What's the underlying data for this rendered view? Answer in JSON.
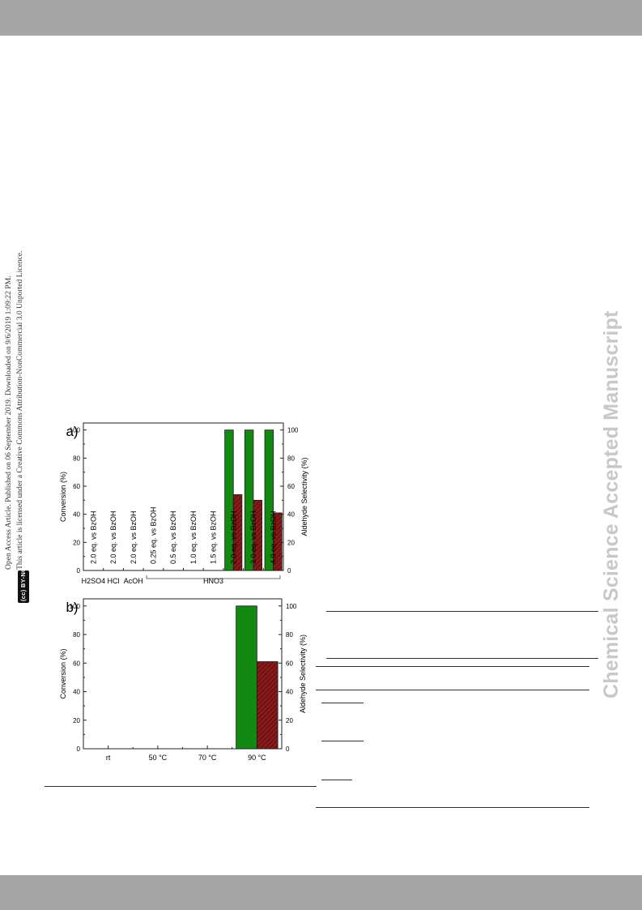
{
  "page": {
    "notice_line1": "Open Access Article. Published on 06 September 2019. Downloaded on 9/6/2019 1:09:22 PM.",
    "notice_line2": "This article is licensed under a Creative Commons Attribution-NonCommercial 3.0 Unported Licence.",
    "license_badge": "(cc) BY-NC",
    "watermark": "Chemical Science Accepted Manuscript",
    "colors": {
      "band": "#a6a6a6",
      "conversion": "#128a12",
      "selectivity": "#8b1a1a",
      "watermark": "#c8c8c8"
    }
  },
  "chart_data": [
    {
      "type": "bar",
      "panel_label": "a)",
      "categories": [
        "2.0 eq. vs BzOH",
        "2.0 eq. vs BzOH",
        "2.0 eq. vs BzOH",
        "0.25 eq. vs BzOH",
        "0.5 eq. vs BzOH",
        "1.0 eq. vs BzOH",
        "1.5 eq. vs BzOH",
        "2.0 eq. vs BzOH",
        "3.0 eq. vs BzOH",
        "4.0 eq. vs BzOH"
      ],
      "acid_groups": [
        {
          "label": "H2SO4",
          "start": 0,
          "end": 0
        },
        {
          "label": "HCl",
          "start": 1,
          "end": 1
        },
        {
          "label": "AcOH",
          "start": 2,
          "end": 2
        },
        {
          "label": "HNO3",
          "start": 3,
          "end": 9
        }
      ],
      "series": [
        {
          "name": "Conversion",
          "axis": "left",
          "values": [
            0,
            0,
            0,
            0,
            0,
            0,
            0,
            100,
            100,
            100
          ]
        },
        {
          "name": "Aldehyde Selectivity",
          "axis": "right",
          "values": [
            0,
            0,
            0,
            0,
            0,
            0,
            0,
            54,
            50,
            41
          ]
        }
      ],
      "ylabel": "Conversion (%)",
      "y2label": "Aldehyde Selectivity (%)",
      "ylim": [
        0,
        105
      ],
      "yticks": [
        0,
        20,
        40,
        60,
        80,
        100
      ],
      "grid": false
    },
    {
      "type": "bar",
      "panel_label": "b)",
      "categories": [
        "rt",
        "50 °C",
        "70 °C",
        "90 °C"
      ],
      "series": [
        {
          "name": "Conversion",
          "axis": "left",
          "values": [
            0,
            0,
            0,
            100
          ]
        },
        {
          "name": "Aldehyde Selectivity",
          "axis": "right",
          "values": [
            0,
            0,
            0,
            61
          ]
        }
      ],
      "ylabel": "Conversion (%)",
      "y2label": "Aldehyde Selectivity (%)",
      "ylim": [
        0,
        105
      ],
      "yticks": [
        0,
        20,
        40,
        60,
        80,
        100
      ],
      "grid": false
    }
  ]
}
